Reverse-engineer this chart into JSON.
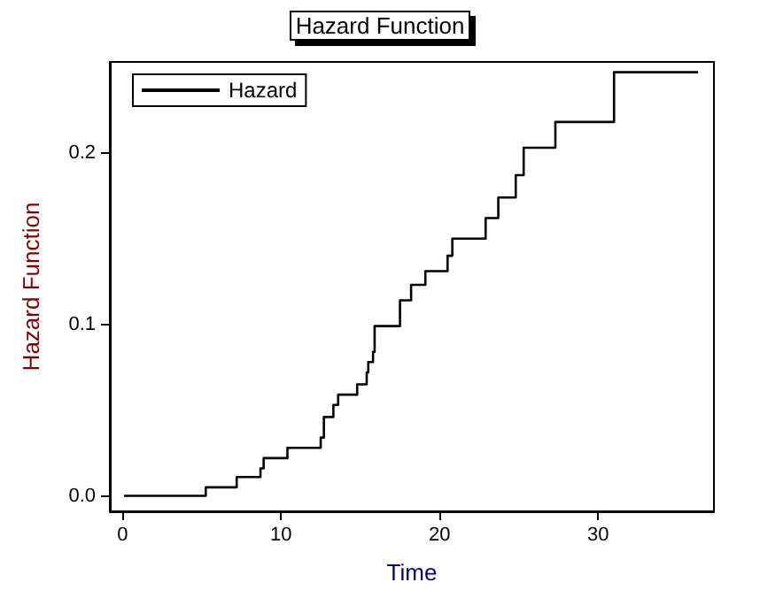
{
  "chart_data": {
    "type": "step",
    "title": "Hazard Function",
    "xlabel": "Time",
    "ylabel": "Hazard Function",
    "series": [
      {
        "name": "Hazard",
        "color": "#000000",
        "x": [
          0.1,
          5.25,
          7.2,
          8.7,
          8.9,
          10.4,
          12.5,
          12.7,
          13.3,
          13.6,
          14.8,
          15.4,
          15.5,
          15.8,
          15.9,
          17.5,
          18.2,
          19.1,
          20.5,
          20.8,
          22.9,
          23.7,
          24.8,
          25.3,
          27.3,
          31.0,
          36.3
        ],
        "values": [
          0,
          0.005,
          0.011,
          0.016,
          0.022,
          0.028,
          0.034,
          0.046,
          0.053,
          0.059,
          0.065,
          0.072,
          0.078,
          0.084,
          0.099,
          0.114,
          0.123,
          0.131,
          0.14,
          0.15,
          0.162,
          0.174,
          0.187,
          0.203,
          0.218,
          0.247,
          0.247
        ]
      }
    ],
    "xlim": [
      -0.8,
      37.3
    ],
    "xticks": [
      0,
      10,
      20,
      30
    ],
    "ylim": [
      -0.009,
      0.253
    ],
    "yticks": [
      {
        "value": 0,
        "label": "0.0"
      },
      {
        "value": 0.1,
        "label": "0.1"
      },
      {
        "value": 0.2,
        "label": "0.2"
      }
    ],
    "legend": "top left",
    "grid": false,
    "marker": "none",
    "line_style": "solid"
  }
}
